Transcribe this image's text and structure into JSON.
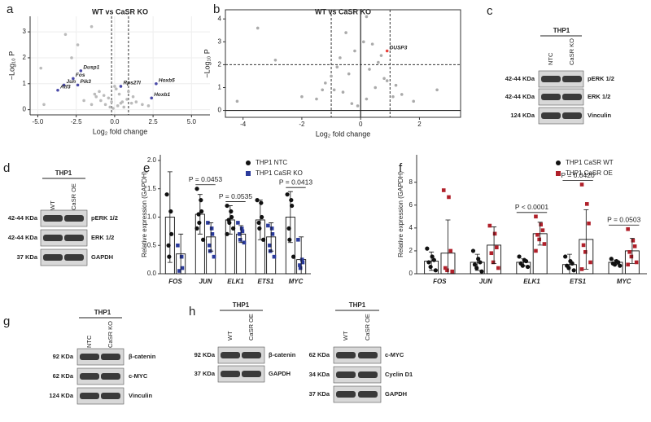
{
  "panel_labels": [
    "a",
    "b",
    "c",
    "d",
    "e",
    "f",
    "g",
    "h"
  ],
  "chart_data": [
    {
      "type": "volcano",
      "title": "WT vs CaSR KO",
      "xlabel": "Log₂ fold change",
      "ylabel": "−Log₁₀ P",
      "xlim": [
        -5.5,
        6.2
      ],
      "ylim": [
        -0.2,
        3.6
      ],
      "xticks": [
        {
          "value": -5,
          "label": "-5.0"
        },
        -2.5,
        {
          "value": 0,
          "label": "0.0"
        },
        2.5,
        {
          "value": 5,
          "label": "5.0"
        }
      ],
      "yticks": [
        0,
        1,
        2,
        3
      ],
      "grid": true,
      "frame": false,
      "vlines": [
        -0.2,
        0.9
      ],
      "series": [
        {
          "color": "#bbbbbb",
          "x": [
            -0.3,
            0.2,
            0.5,
            -0.6,
            0.8,
            -0.9,
            1.1,
            -1.2,
            0.3,
            -0.1,
            0.6,
            -0.4,
            1.4,
            -1.5,
            0.9,
            -0.7,
            1.8,
            2.2,
            -2.0,
            0.1,
            -0.2,
            0.4,
            1.2,
            -1.0,
            -1.3,
            -4.8,
            -3.2,
            -1.5,
            -2.8,
            -2.4,
            -4.6,
            0.0
          ],
          "values": [
            0.1,
            0.15,
            0.3,
            0.2,
            0.4,
            0.35,
            0.25,
            0.5,
            0.6,
            0.05,
            0.1,
            0.45,
            0.3,
            0.2,
            0.7,
            0.55,
            0.2,
            0.15,
            0.35,
            0.8,
            0.3,
            0.25,
            0.5,
            0.7,
            0.6,
            1.6,
            2.9,
            3.2,
            2.0,
            2.5,
            0.2,
            0.9
          ]
        },
        {
          "color": "#4a4aa8",
          "labels": [
            "Dusp1",
            "Fos",
            "Jun",
            "Pik3",
            "Atf3",
            "Rps27l",
            "Hoxb5",
            "Hoxb1"
          ],
          "x": [
            -2.2,
            -2.7,
            -3.3,
            -2.4,
            -3.7,
            0.4,
            2.7,
            2.4
          ],
          "values": [
            1.5,
            1.2,
            0.95,
            0.95,
            0.75,
            0.9,
            1.0,
            0.45
          ]
        }
      ]
    },
    {
      "type": "volcano",
      "title": "WT vs CaSR KO",
      "xlabel": "Log₂ fold change",
      "ylabel": "−Log₁₀ P",
      "xlim": [
        -4.6,
        3.4
      ],
      "ylim": [
        -0.3,
        4.4
      ],
      "xticks": [
        -4,
        -2,
        0,
        2
      ],
      "yticks": [
        0,
        1,
        2,
        3,
        4
      ],
      "grid": false,
      "frame": true,
      "zero_lines": true,
      "vlines": [
        -1,
        1
      ],
      "hlines": [
        2
      ],
      "series": [
        {
          "color": "#aaaaaa",
          "x": [
            -0.3,
            0.2,
            0.5,
            -0.6,
            0.8,
            -0.9,
            1.1,
            -1.2,
            0.3,
            -0.1,
            0.6,
            -0.4,
            1.4,
            -1.5,
            0.9,
            -0.7,
            1.8,
            -2.0,
            0.1,
            -0.2,
            0.4,
            1.2,
            -1.0,
            -1.3,
            -4.2,
            -2.9,
            0.2,
            -0.5,
            2.6,
            -3.5,
            0.7,
            -0.8
          ],
          "values": [
            0.3,
            0.5,
            1.0,
            0.8,
            1.4,
            0.9,
            0.6,
            1.2,
            1.8,
            0.2,
            2.1,
            1.6,
            0.7,
            0.5,
            1.3,
            2.3,
            0.4,
            0.6,
            3.0,
            2.6,
            2.9,
            1.1,
            1.5,
            0.9,
            0.4,
            2.2,
            4.1,
            3.4,
            0.9,
            3.6,
            2.4,
            1.9
          ]
        },
        {
          "color": "#e8403a",
          "labels": [
            "DUSP3"
          ],
          "x": [
            0.9
          ],
          "values": [
            2.6
          ]
        }
      ]
    },
    {
      "type": "bar",
      "ylabel": "Relative expression (GAPDH)",
      "categories": [
        "FOS",
        "JUN",
        "ELK1",
        "ETS1",
        "MYC"
      ],
      "ylim": [
        0,
        2.1
      ],
      "yticks": [
        {
          "value": 0,
          "label": "0.0"
        },
        0.5,
        {
          "value": 1,
          "label": "1.0"
        },
        1.5,
        {
          "value": 2,
          "label": "2.0"
        }
      ],
      "legend": "top-right",
      "series": [
        {
          "name": "THP1 NTC",
          "color": "#111111",
          "marker": "circle",
          "values": [
            1.0,
            1.05,
            0.95,
            0.95,
            1.0
          ],
          "errors": [
            0.8,
            0.35,
            0.25,
            0.35,
            0.45
          ],
          "points": [
            [
              1.4,
              1.1,
              0.7,
              0.5,
              0.3
            ],
            [
              1.5,
              1.3,
              1.1,
              1.05,
              0.9,
              0.6,
              0.8
            ],
            [
              1.2,
              1.1,
              1.0,
              0.95,
              0.9,
              0.8,
              0.7
            ],
            [
              1.3,
              1.25,
              1.0,
              0.9,
              0.8,
              0.6
            ],
            [
              1.4,
              1.3,
              1.2,
              0.8,
              0.6,
              0.3
            ]
          ]
        },
        {
          "name": "THP1 CaSR KO",
          "color": "#2b3b9c",
          "marker": "square",
          "values": [
            0.35,
            0.65,
            0.7,
            0.65,
            0.25
          ],
          "errors": [
            0.35,
            0.25,
            0.15,
            0.25,
            0.4
          ],
          "points": [
            [
              0.5,
              0.3,
              0.1,
              0.05
            ],
            [
              0.9,
              0.8,
              0.7,
              0.5,
              0.4,
              0.3
            ],
            [
              0.9,
              0.8,
              0.75,
              0.7,
              0.6,
              0.55
            ],
            [
              0.85,
              0.8,
              0.7,
              0.5,
              0.4,
              0.3
            ],
            [
              0.6,
              0.25,
              0.2,
              0.15,
              0.1
            ]
          ]
        }
      ],
      "annotations": [
        {
          "category": "JUN",
          "text": "P = 0.0453"
        },
        {
          "category": "ELK1",
          "text": "P = 0.0535"
        },
        {
          "category": "MYC",
          "text": "P = 0.0413"
        }
      ]
    },
    {
      "type": "bar",
      "ylabel": "Relative expression (GAPDH)",
      "categories": [
        "FOS",
        "JUN",
        "ELK1",
        "ETS1",
        "MYC"
      ],
      "ylim": [
        0,
        10.4
      ],
      "yticks": [
        0,
        2,
        4,
        6,
        8
      ],
      "legend": "top-right",
      "series": [
        {
          "name": "THP1 CaSR WT",
          "color": "#111111",
          "marker": "circle",
          "values": [
            1.1,
            1.0,
            1.0,
            0.8,
            1.0
          ],
          "errors": [
            0.8,
            0.7,
            0.3,
            0.9,
            0.2
          ],
          "points": [
            [
              2.2,
              1.5,
              1.2,
              1.0,
              0.6,
              0.3
            ],
            [
              2.0,
              1.3,
              1.0,
              0.8,
              0.5,
              0.2
            ],
            [
              1.5,
              1.2,
              1.1,
              0.9,
              0.7,
              0.6
            ],
            [
              1.5,
              1.1,
              0.9,
              0.7,
              0.5,
              0.3
            ],
            [
              1.3,
              1.1,
              1.0,
              0.9,
              0.8,
              0.7
            ]
          ]
        },
        {
          "name": "THP1 CaSR OE",
          "color": "#b0202a",
          "marker": "square",
          "values": [
            1.8,
            2.5,
            3.5,
            3.0,
            2.0
          ],
          "errors": [
            2.9,
            1.6,
            1.0,
            2.6,
            1.1
          ],
          "points": [
            [
              7.3,
              6.7,
              2.0,
              0.5,
              0.3,
              0.2
            ],
            [
              4.2,
              3.5,
              2.3,
              1.8,
              1.0,
              0.5
            ],
            [
              5.0,
              4.3,
              3.8,
              3.4,
              3.0,
              2.6,
              2.0
            ],
            [
              7.8,
              6.1,
              4.4,
              2.5,
              1.9,
              1.0,
              0.4
            ],
            [
              3.9,
              2.9,
              2.4,
              1.9,
              1.5,
              1.0,
              0.8
            ]
          ]
        }
      ],
      "annotations": [
        {
          "category": "ELK1",
          "text": "P < 0.0001"
        },
        {
          "category": "ETS1",
          "text": "P = 0.0420"
        },
        {
          "category": "MYC",
          "text": "P = 0.0503"
        }
      ]
    }
  ],
  "blots": [
    {
      "header": "THP1",
      "lanes": [
        "NTC",
        "CaSR KO"
      ],
      "rows": [
        {
          "size": "42-44 KDa",
          "protein": "pERK 1/2"
        },
        {
          "size": "42-44 KDa",
          "protein": "ERK 1/2"
        },
        {
          "size": "124 KDa",
          "protein": "Vinculin"
        }
      ]
    },
    {
      "header": "THP1",
      "lanes": [
        "WT",
        "CaSR OE"
      ],
      "rows": [
        {
          "size": "42-44 KDa",
          "protein": "pERK 1/2"
        },
        {
          "size": "42-44 KDa",
          "protein": "ERK 1/2"
        },
        {
          "size": "37 KDa",
          "protein": "GAPDH"
        }
      ]
    },
    {
      "header": "THP1",
      "lanes": [
        "NTC",
        "CaSR KO"
      ],
      "rows": [
        {
          "size": "92 KDa",
          "protein": "β-catenin"
        },
        {
          "size": "62 KDa",
          "protein": "c-MYC"
        },
        {
          "size": "124 KDa",
          "protein": "Vinculin"
        }
      ]
    },
    {
      "header": "THP1",
      "lanes": [
        "WT",
        "CaSR OE"
      ],
      "rows": [
        {
          "size": "92 KDa",
          "protein": "β-catenin"
        },
        {
          "size": "37 KDa",
          "protein": "GAPDH"
        }
      ]
    },
    {
      "header": "THP1",
      "lanes": [
        "WT",
        "CaSR OE"
      ],
      "rows": [
        {
          "size": "62 KDa",
          "protein": "c-MYC"
        },
        {
          "size": "34 KDa",
          "protein": "Cyclin D1"
        },
        {
          "size": "37 KDa",
          "protein": "GAPDH"
        }
      ]
    }
  ]
}
